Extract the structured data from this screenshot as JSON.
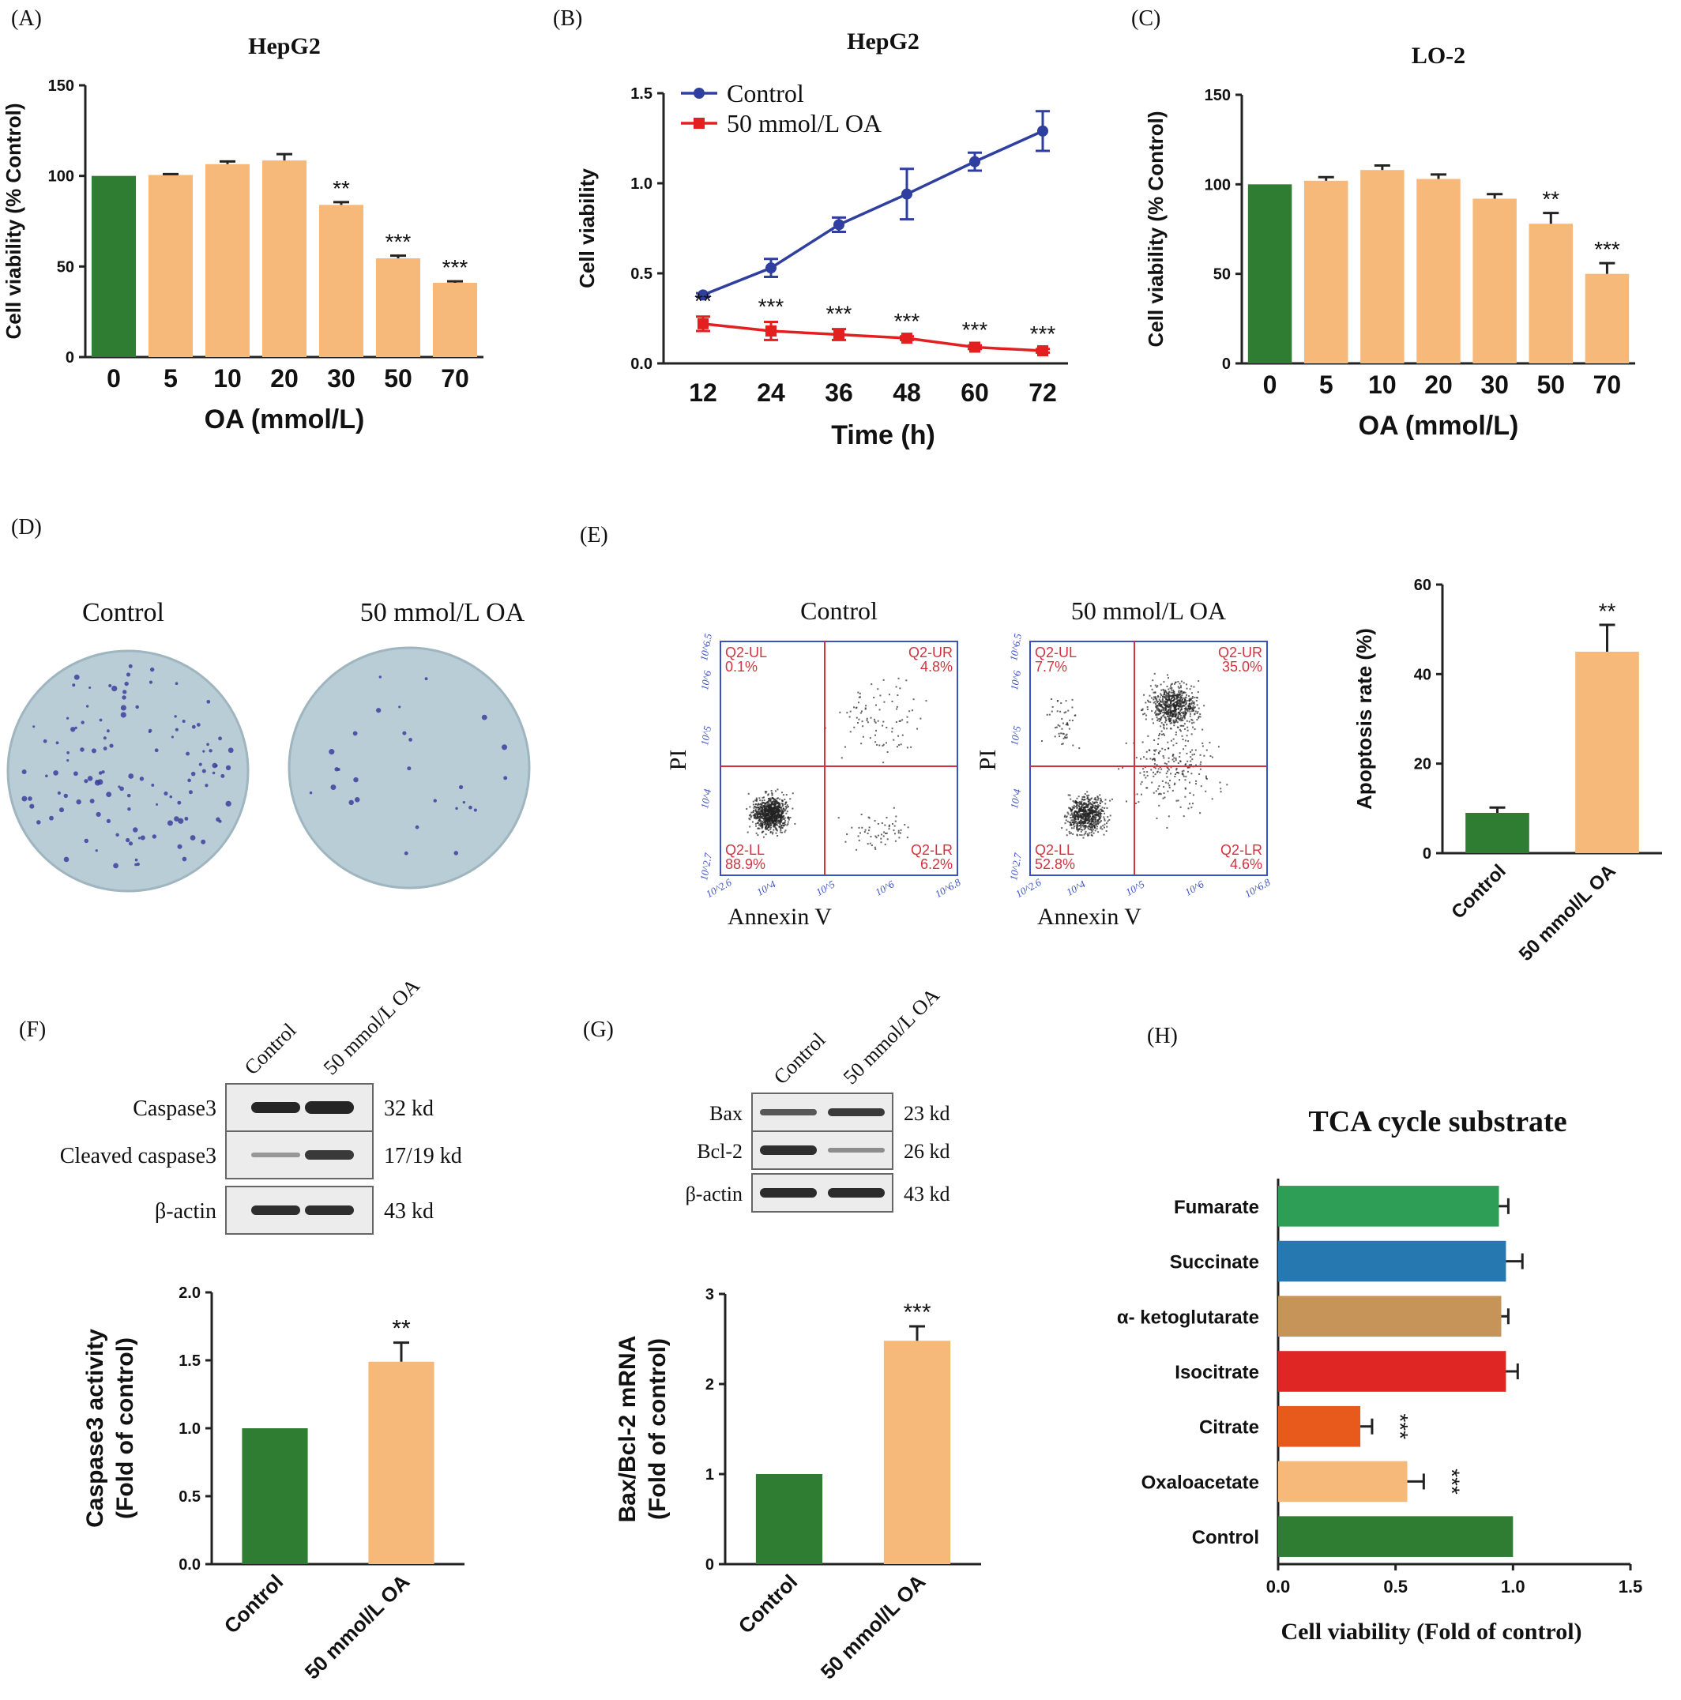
{
  "colors": {
    "green": "#2e7d32",
    "orange": "#f6b97a",
    "blue": "#2e3fa0",
    "red": "#e32020",
    "gate": "#d0353f",
    "axis_blue": "#3a4fc0",
    "plate": "#b9cdd6",
    "colony": "#3b3f9e",
    "tca_fumarate": "#2e9e57",
    "tca_succinate": "#2678b0",
    "tca_akg": "#c69458",
    "tca_isocitrate": "#e02525",
    "tca_citrate": "#e85a1c",
    "tca_oxaloacetate": "#f6b97a",
    "tca_control": "#2e7d32"
  },
  "panels": {
    "A": {
      "letter": "(A)"
    },
    "B": {
      "letter": "(B)"
    },
    "C": {
      "letter": "(C)"
    },
    "D": {
      "letter": "(D)",
      "labels": [
        "Control",
        "50 mmol/L OA"
      ]
    },
    "E": {
      "letter": "(E)",
      "plot_titles": [
        "Control",
        "50 mmol/L OA"
      ],
      "y_label": "PI",
      "x_label": "Annexin V",
      "quadrant_labels": [
        "Q2-UL",
        "Q2-UR",
        "Q2-LL",
        "Q2-LR"
      ],
      "control_values": [
        "0.1%",
        "4.8%",
        "88.9%",
        "6.2%"
      ],
      "oa_values": [
        "7.7%",
        "35.0%",
        "52.8%",
        "4.6%"
      ],
      "x_ticks": [
        "10^2.6",
        "10^4",
        "10^5",
        "10^6",
        "10^6.8"
      ],
      "y_ticks": [
        "10^6.5",
        "10^6",
        "10^5",
        "10^4",
        "10^2.7"
      ]
    },
    "F": {
      "letter": "(F)",
      "lanes": [
        "Control",
        "50 mmol/L OA"
      ],
      "rows": [
        {
          "name": "Caspase3",
          "size": "32 kd"
        },
        {
          "name": "Cleaved caspase3",
          "size": "17/19 kd"
        },
        {
          "name": "β-actin",
          "size": "43 kd"
        }
      ]
    },
    "G": {
      "letter": "(G)",
      "lanes": [
        "Control",
        "50 mmol/L OA"
      ],
      "rows": [
        {
          "name": "Bax",
          "size": "23 kd"
        },
        {
          "name": "Bcl-2",
          "size": "26 kd"
        },
        {
          "name": "β-actin",
          "size": "43 kd"
        }
      ]
    },
    "H": {
      "letter": "(H)"
    }
  },
  "chart_data": [
    {
      "id": "A",
      "type": "bar",
      "title": "HepG2",
      "xlabel": "OA (mmol/L)",
      "ylabel": "Cell viability (% Control)",
      "categories": [
        "0",
        "5",
        "10",
        "20",
        "30",
        "50",
        "70"
      ],
      "values": [
        100,
        100.5,
        106.5,
        108.5,
        84,
        54.5,
        41
      ],
      "errors": [
        0,
        0.5,
        1.5,
        3.5,
        1.5,
        1.5,
        0.8
      ],
      "annotations": [
        "",
        "",
        "",
        "",
        "**",
        "***",
        "***"
      ],
      "ylim": [
        0,
        150
      ],
      "yticks": [
        0,
        50,
        100,
        150
      ]
    },
    {
      "id": "B",
      "type": "line",
      "title": "HepG2",
      "xlabel": "Time (h)",
      "ylabel": "Cell viability",
      "x": [
        12,
        24,
        36,
        48,
        60,
        72
      ],
      "series": [
        {
          "name": "Control",
          "values": [
            0.38,
            0.53,
            0.77,
            0.94,
            1.12,
            1.29
          ],
          "errors": [
            0.01,
            0.05,
            0.04,
            0.14,
            0.05,
            0.11
          ]
        },
        {
          "name": "50 mmol/L OA",
          "values": [
            0.22,
            0.18,
            0.16,
            0.14,
            0.09,
            0.07
          ],
          "errors": [
            0.04,
            0.05,
            0.03,
            0.01,
            0.01,
            0.01
          ],
          "annotations": [
            "**",
            "***",
            "***",
            "***",
            "***",
            "***"
          ]
        }
      ],
      "ylim": [
        0,
        1.5
      ],
      "yticks": [
        "0.0",
        "0.5",
        "1.0",
        "1.5"
      ],
      "legend": "top-left"
    },
    {
      "id": "C",
      "type": "bar",
      "title": "LO-2",
      "xlabel": "OA (mmol/L)",
      "ylabel": "Cell viability (% Control)",
      "categories": [
        "0",
        "5",
        "10",
        "20",
        "30",
        "50",
        "70"
      ],
      "values": [
        100,
        102,
        108,
        103,
        92,
        78,
        50
      ],
      "errors": [
        0,
        2,
        2.5,
        2.5,
        2.5,
        6,
        6
      ],
      "annotations": [
        "",
        "",
        "",
        "",
        "",
        "**",
        "***"
      ],
      "ylim": [
        0,
        150
      ],
      "yticks": [
        0,
        50,
        100,
        150
      ]
    },
    {
      "id": "E",
      "type": "bar",
      "ylabel": "Apoptosis rate (%)",
      "categories": [
        "Control",
        "50 mmol/L OA"
      ],
      "values": [
        9,
        45
      ],
      "errors": [
        1.2,
        6
      ],
      "annotations": [
        "",
        "**"
      ],
      "ylim": [
        0,
        60
      ],
      "yticks": [
        0,
        20,
        40,
        60
      ]
    },
    {
      "id": "F",
      "type": "bar",
      "ylabel": "Caspase3 activity",
      "ylabel2": "(Fold of control)",
      "categories": [
        "Control",
        "50 mmol/L OA"
      ],
      "values": [
        1.0,
        1.49
      ],
      "errors": [
        0,
        0.14
      ],
      "annotations": [
        "",
        "**"
      ],
      "ylim": [
        0,
        2.0
      ],
      "yticks": [
        "0.0",
        "0.5",
        "1.0",
        "1.5",
        "2.0"
      ]
    },
    {
      "id": "G",
      "type": "bar",
      "ylabel": "Bax/Bcl-2 mRNA",
      "ylabel2": "(Fold of control)",
      "categories": [
        "Control",
        "50 mmol/L OA"
      ],
      "values": [
        1.0,
        2.48
      ],
      "errors": [
        0,
        0.16
      ],
      "annotations": [
        "",
        "***"
      ],
      "ylim": [
        0,
        3
      ],
      "yticks": [
        0,
        1,
        2,
        3
      ]
    },
    {
      "id": "H",
      "type": "bar",
      "orientation": "horizontal",
      "title": "TCA cycle substrate",
      "xlabel": "Cell viability (Fold of control)",
      "categories": [
        "Fumarate",
        "Succinate",
        "α- ketoglutarate",
        "Isocitrate",
        "Citrate",
        "Oxaloacetate",
        "Control"
      ],
      "values": [
        0.94,
        0.97,
        0.95,
        0.97,
        0.35,
        0.55,
        1.0
      ],
      "errors": [
        0.04,
        0.07,
        0.03,
        0.05,
        0.05,
        0.07,
        0
      ],
      "annotations": [
        "",
        "",
        "",
        "",
        "***",
        "***",
        ""
      ],
      "xlim": [
        0,
        1.5
      ],
      "xticks": [
        "0.0",
        "0.5",
        "1.0",
        "1.5"
      ]
    }
  ]
}
